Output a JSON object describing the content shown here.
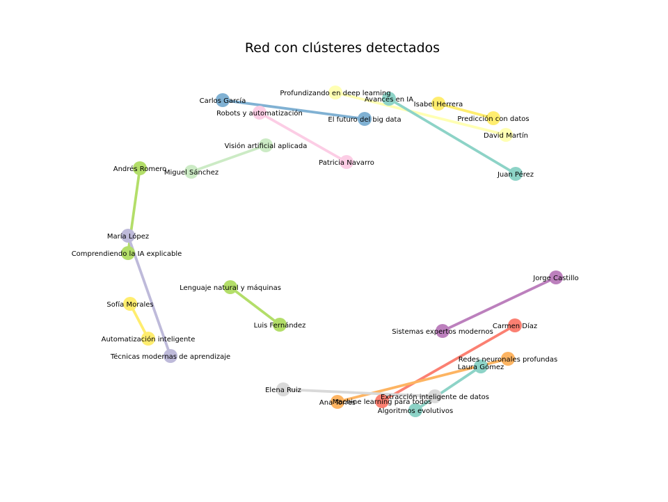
{
  "title": "Red con clústeres detectados",
  "colors": {
    "teal": "#8dd3c7",
    "yellow": "#ffed6f",
    "paleyellow": "#ffffb3",
    "blue": "#80b1d3",
    "pink": "#fccde5",
    "lightgreen": "#ccebc5",
    "green": "#b3de69",
    "lavender": "#bebada",
    "purple": "#bc80bd",
    "red": "#fb8072",
    "orange": "#fdb462",
    "gray": "#d9d9d9"
  },
  "nodes": [
    {
      "id": "carlos",
      "label": "Carlos García",
      "color": "blue"
    },
    {
      "id": "futuro",
      "label": "El futuro del big data",
      "color": "blue"
    },
    {
      "id": "robots",
      "label": "Robots y automatización",
      "color": "pink"
    },
    {
      "id": "patricia",
      "label": "Patricia Navarro",
      "color": "pink"
    },
    {
      "id": "profundizando",
      "label": "Profundizando en deep learning",
      "color": "paleyellow"
    },
    {
      "id": "david",
      "label": "David Martín",
      "color": "paleyellow"
    },
    {
      "id": "avances",
      "label": "Avances en IA",
      "color": "teal"
    },
    {
      "id": "juan",
      "label": "Juan Pérez",
      "color": "teal"
    },
    {
      "id": "isabel",
      "label": "Isabel Herrera",
      "color": "yellow"
    },
    {
      "id": "prediccion",
      "label": "Predicción con datos",
      "color": "yellow"
    },
    {
      "id": "vision",
      "label": "Visión artificial aplicada",
      "color": "lightgreen"
    },
    {
      "id": "miguel",
      "label": "Miguel Sánchez",
      "color": "lightgreen"
    },
    {
      "id": "andres",
      "label": "Andrés Romero",
      "color": "green"
    },
    {
      "id": "comprendiendo",
      "label": "Comprendiendo la IA explicable",
      "color": "green"
    },
    {
      "id": "maria",
      "label": "María López",
      "color": "lavender"
    },
    {
      "id": "tecnicas",
      "label": "Técnicas modernas de aprendizaje",
      "color": "lavender"
    },
    {
      "id": "lenguaje",
      "label": "Lenguaje natural y máquinas",
      "color": "green"
    },
    {
      "id": "luis",
      "label": "Luis Fernández",
      "color": "green"
    },
    {
      "id": "sofia",
      "label": "Sofía Morales",
      "color": "yellow"
    },
    {
      "id": "automatizacion",
      "label": "Automatización inteligente",
      "color": "yellow"
    },
    {
      "id": "jorge",
      "label": "Jorge Castillo",
      "color": "purple"
    },
    {
      "id": "sistemas",
      "label": "Sistemas expertos modernos",
      "color": "purple"
    },
    {
      "id": "carmen",
      "label": "Carmen Díaz",
      "color": "red"
    },
    {
      "id": "machine",
      "label": "Machine learning para todos",
      "color": "red"
    },
    {
      "id": "redes",
      "label": "Redes neuronales profundas",
      "color": "orange"
    },
    {
      "id": "ana",
      "label": "Ana Torres",
      "color": "orange"
    },
    {
      "id": "laura",
      "label": "Laura Gómez",
      "color": "teal"
    },
    {
      "id": "algoritmos",
      "label": "Algoritmos evolutivos",
      "color": "teal"
    },
    {
      "id": "elena",
      "label": "Elena Ruiz",
      "color": "gray"
    },
    {
      "id": "extraccion",
      "label": "Extracción inteligente de datos",
      "color": "gray"
    }
  ],
  "edges": [
    {
      "source": "carlos",
      "target": "futuro",
      "color": "blue"
    },
    {
      "source": "robots",
      "target": "patricia",
      "color": "pink"
    },
    {
      "source": "profundizando",
      "target": "david",
      "color": "paleyellow"
    },
    {
      "source": "avances",
      "target": "juan",
      "color": "teal"
    },
    {
      "source": "isabel",
      "target": "prediccion",
      "color": "yellow"
    },
    {
      "source": "vision",
      "target": "miguel",
      "color": "lightgreen"
    },
    {
      "source": "andres",
      "target": "comprendiendo",
      "color": "green"
    },
    {
      "source": "maria",
      "target": "tecnicas",
      "color": "lavender"
    },
    {
      "source": "lenguaje",
      "target": "luis",
      "color": "green"
    },
    {
      "source": "sofia",
      "target": "automatizacion",
      "color": "yellow"
    },
    {
      "source": "jorge",
      "target": "sistemas",
      "color": "purple"
    },
    {
      "source": "carmen",
      "target": "machine",
      "color": "red"
    },
    {
      "source": "redes",
      "target": "ana",
      "color": "orange"
    },
    {
      "source": "laura",
      "target": "algoritmos",
      "color": "teal"
    },
    {
      "source": "elena",
      "target": "extraccion",
      "color": "gray"
    }
  ]
}
